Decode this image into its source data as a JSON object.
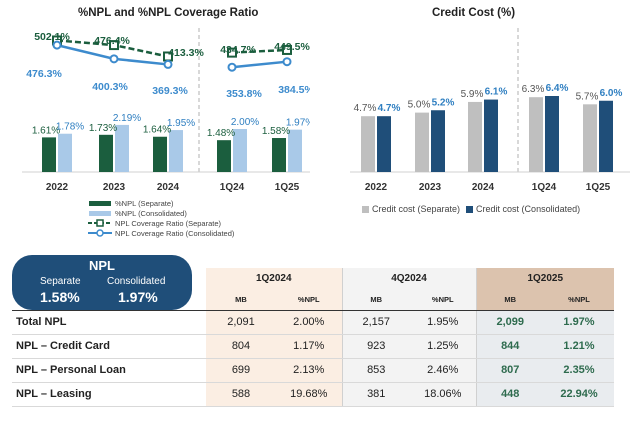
{
  "colors": {
    "npl_separate": "#1b5e3e",
    "npl_consolidated": "#a9c9e8",
    "coverage_separate": "#1b5e3e",
    "coverage_consolidated": "#3d8bcd",
    "cc_separate": "#bfbfbf",
    "cc_consolidated": "#1f4e79",
    "npl_box": "#1f4e79"
  },
  "chart_data": [
    {
      "type": "bar",
      "title": "%NPL and %NPL Coverage Ratio",
      "categories": [
        "2022",
        "2023",
        "2024",
        "1Q24",
        "1Q25"
      ],
      "series": [
        {
          "name": "%NPL (Separate)",
          "kind": "bar",
          "values": [
            1.61,
            1.73,
            1.64,
            1.48,
            1.58
          ],
          "labels": [
            "1.61%",
            "1.73%",
            "1.64%",
            "1.48%",
            "1.58%"
          ]
        },
        {
          "name": "%NPL (Consolidated)",
          "kind": "bar",
          "values": [
            1.78,
            2.19,
            1.95,
            2.0,
            1.97
          ],
          "labels": [
            "1.78%",
            "2.19%",
            "1.95%",
            "2.00%",
            "1.97%"
          ]
        },
        {
          "name": "NPL Coverage Ratio (Separate)",
          "kind": "line",
          "values": [
            502.1,
            476.4,
            413.3,
            434.7,
            449.5
          ],
          "labels": [
            "502.1%",
            "476.4%",
            "413.3%",
            "434.7%",
            "449.5%"
          ]
        },
        {
          "name": "NPL Coverage Ratio (Consolidated)",
          "kind": "line",
          "values": [
            476.3,
            400.3,
            369.3,
            353.8,
            384.5
          ],
          "labels": [
            "476.3%",
            "400.3%",
            "369.3%",
            "353.8%",
            "384.5%"
          ]
        }
      ],
      "segments": [
        [
          0,
          1,
          2
        ],
        [
          3,
          4
        ]
      ],
      "bar_ylim": [
        0,
        6
      ],
      "line_ylim": [
        200,
        560
      ]
    },
    {
      "type": "bar",
      "title": "Credit Cost (%)",
      "categories": [
        "2022",
        "2023",
        "2024",
        "1Q24",
        "1Q25"
      ],
      "series": [
        {
          "name": "Credit cost (Separate)",
          "values": [
            4.7,
            5.0,
            5.9,
            6.3,
            5.7
          ],
          "labels": [
            "4.7%",
            "5.0%",
            "5.9%",
            "6.3%",
            "5.7%"
          ]
        },
        {
          "name": "Credit cost (Consolidated)",
          "values": [
            4.7,
            5.2,
            6.1,
            6.4,
            6.0
          ],
          "labels": [
            "4.7%",
            "5.2%",
            "6.1%",
            "6.4%",
            "6.0%"
          ]
        }
      ],
      "ylim": [
        0,
        7.5
      ]
    }
  ],
  "npl_box": {
    "title": "NPL",
    "separate_label": "Separate",
    "separate_value": "1.58%",
    "consolidated_label": "Consolidated",
    "consolidated_value": "1.97%"
  },
  "table": {
    "periods": [
      "1Q2024",
      "4Q2024",
      "1Q2025"
    ],
    "sub_headers": [
      "MB",
      "%NPL"
    ],
    "rows": [
      {
        "label": "Total NPL",
        "cells": [
          "2,091",
          "2.00%",
          "2,157",
          "1.95%",
          "2,099",
          "1.97%"
        ]
      },
      {
        "label": "NPL – Credit Card",
        "cells": [
          "804",
          "1.17%",
          "923",
          "1.25%",
          "844",
          "1.21%"
        ]
      },
      {
        "label": "NPL – Personal Loan",
        "cells": [
          "699",
          "2.13%",
          "853",
          "2.46%",
          "807",
          "2.35%"
        ]
      },
      {
        "label": "NPL – Leasing",
        "cells": [
          "588",
          "19.68%",
          "381",
          "18.06%",
          "448",
          "22.94%"
        ]
      }
    ]
  }
}
